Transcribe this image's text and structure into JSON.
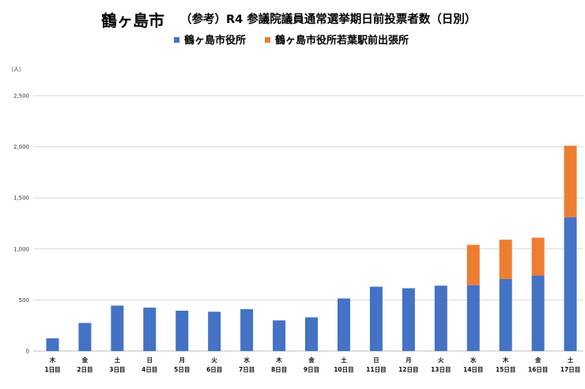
{
  "title": {
    "city": "鶴ヶ島市",
    "text": "（参考）R4 参議院議員通常選挙期日前投票者数（日別）"
  },
  "y_unit": "（人）",
  "colors": {
    "series_main": "#4472C4",
    "series_branch": "#ED7D31",
    "grid": "#d9d9d9"
  },
  "chart_data": {
    "type": "bar",
    "stacked": true,
    "categories": [
      [
        "木",
        "1日目"
      ],
      [
        "金",
        "2日目"
      ],
      [
        "土",
        "3日目"
      ],
      [
        "日",
        "4日目"
      ],
      [
        "月",
        "5日目"
      ],
      [
        "火",
        "6日目"
      ],
      [
        "水",
        "7日目"
      ],
      [
        "木",
        "8日目"
      ],
      [
        "金",
        "9日目"
      ],
      [
        "土",
        "10日目"
      ],
      [
        "日",
        "11日目"
      ],
      [
        "月",
        "12日目"
      ],
      [
        "火",
        "13日目"
      ],
      [
        "水",
        "14日目"
      ],
      [
        "木",
        "15日目"
      ],
      [
        "金",
        "16日目"
      ],
      [
        "土",
        "17日目"
      ]
    ],
    "series": [
      {
        "name": "鶴ヶ島市役所",
        "values": [
          125,
          275,
          445,
          425,
          395,
          385,
          410,
          300,
          330,
          515,
          630,
          615,
          640,
          645,
          705,
          740,
          1310
        ]
      },
      {
        "name": "鶴ヶ島市役所若葉駅前出張所",
        "values": [
          0,
          0,
          0,
          0,
          0,
          0,
          0,
          0,
          0,
          0,
          0,
          0,
          0,
          395,
          385,
          370,
          700
        ]
      }
    ],
    "ylim": [
      0,
      2500
    ],
    "yticks": [
      "0",
      "500",
      "1,000",
      "1,500",
      "2,000",
      "2,500"
    ],
    "ytick_values": [
      0,
      500,
      1000,
      1500,
      2000,
      2500
    ],
    "grid": true,
    "legend_position": "top-center"
  }
}
